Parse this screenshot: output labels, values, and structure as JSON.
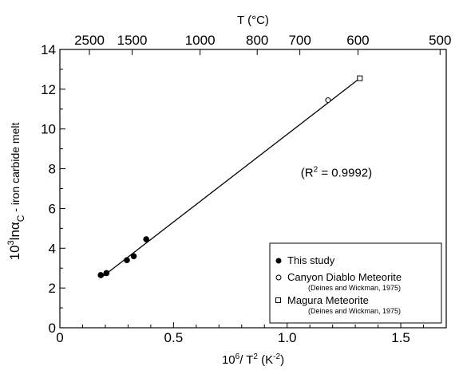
{
  "chart_data": {
    "type": "scatter",
    "title": "",
    "xlabel": {
      "base": "10",
      "base_sup": "6",
      "mid": "/ T",
      "mid_sup": "2",
      "unit": " (K",
      "unit_sup": "-2",
      "close": ")"
    },
    "ylabel": {
      "base": "10",
      "base_sup": "3",
      "mid": "lnα",
      "sub": "C",
      "rest": " - iron carbide melt"
    },
    "x2label": "T (°C)",
    "xlim": [
      0,
      1.7
    ],
    "ylim": [
      0,
      14
    ],
    "xticks": [
      {
        "v": 0,
        "label": "0"
      },
      {
        "v": 0.5,
        "label": "0.5"
      },
      {
        "v": 1.0,
        "label": "1.0"
      },
      {
        "v": 1.5,
        "label": "1.5"
      }
    ],
    "yticks": [
      {
        "v": 0,
        "label": "0"
      },
      {
        "v": 2,
        "label": "2"
      },
      {
        "v": 4,
        "label": "4"
      },
      {
        "v": 6,
        "label": "6"
      },
      {
        "v": 8,
        "label": "8"
      },
      {
        "v": 10,
        "label": "10"
      },
      {
        "v": 12,
        "label": "12"
      },
      {
        "v": 14,
        "label": "14"
      }
    ],
    "top_ticks": [
      2500,
      1500,
      1000,
      800,
      700,
      600,
      500
    ],
    "series": [
      {
        "name": "This study",
        "marker": "filled-circle",
        "points": [
          [
            0.18,
            2.65
          ],
          [
            0.205,
            2.75
          ],
          [
            0.295,
            3.4
          ],
          [
            0.325,
            3.6
          ],
          [
            0.38,
            4.45
          ]
        ]
      },
      {
        "name": "Canyon Diablo Meteorite",
        "reference": "(Deines and Wickman, 1975)",
        "marker": "open-circle",
        "points": [
          [
            1.18,
            11.45
          ]
        ]
      },
      {
        "name": "Magura Meteorite",
        "reference": "(Deines and Wickman, 1975)",
        "marker": "open-square",
        "points": [
          [
            1.32,
            12.55
          ]
        ]
      }
    ],
    "fit_line": {
      "from": [
        0.18,
        2.5
      ],
      "to": [
        1.32,
        12.55
      ]
    },
    "annotation": {
      "text_pre": "(R",
      "sup": "2",
      "text_post": " = 0.9992)",
      "at": [
        1.06,
        7.8
      ]
    },
    "legend_position": "bottom-right",
    "grid": false
  }
}
